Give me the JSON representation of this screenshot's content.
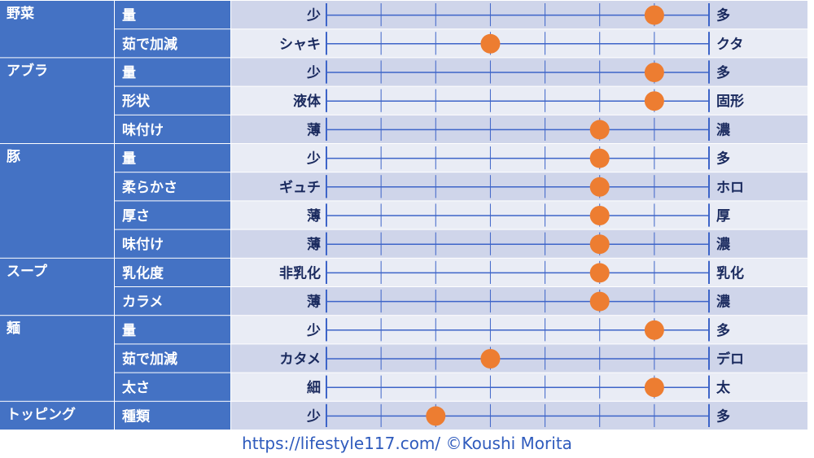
{
  "chart_data": {
    "type": "scatter",
    "scale_steps": 7,
    "colors": {
      "category_bg": "#4472c4",
      "row_light": "#e9ecf5",
      "row_dark": "#cfd5ea",
      "line": "#3d64c8",
      "marker": "#ed7d31",
      "text_dark": "#1a2a5e"
    },
    "groups": [
      {
        "category": "野菜",
        "rows": [
          {
            "item": "量",
            "low": "少",
            "high": "多",
            "value": 6
          },
          {
            "item": "茹で加減",
            "low": "シャキ",
            "high": "クタ",
            "value": 3
          }
        ]
      },
      {
        "category": "アブラ",
        "rows": [
          {
            "item": "量",
            "low": "少",
            "high": "多",
            "value": 6
          },
          {
            "item": "形状",
            "low": "液体",
            "high": "固形",
            "value": 6
          },
          {
            "item": "味付け",
            "low": "薄",
            "high": "濃",
            "value": 5
          }
        ]
      },
      {
        "category": "豚",
        "rows": [
          {
            "item": "量",
            "low": "少",
            "high": "多",
            "value": 5
          },
          {
            "item": "柔らかさ",
            "low": "ギュチ",
            "high": "ホロ",
            "value": 5
          },
          {
            "item": "厚さ",
            "low": "薄",
            "high": "厚",
            "value": 5
          },
          {
            "item": "味付け",
            "low": "薄",
            "high": "濃",
            "value": 5
          }
        ]
      },
      {
        "category": "スープ",
        "rows": [
          {
            "item": "乳化度",
            "low": "非乳化",
            "high": "乳化",
            "value": 5
          },
          {
            "item": "カラメ",
            "low": "薄",
            "high": "濃",
            "value": 5
          }
        ]
      },
      {
        "category": "麺",
        "rows": [
          {
            "item": "量",
            "low": "少",
            "high": "多",
            "value": 6
          },
          {
            "item": "茹で加減",
            "low": "カタメ",
            "high": "デロ",
            "value": 3
          },
          {
            "item": "太さ",
            "low": "細",
            "high": "太",
            "value": 6
          }
        ]
      },
      {
        "category": "トッピング",
        "rows": [
          {
            "item": "種類",
            "low": "少",
            "high": "多",
            "value": 2
          }
        ]
      }
    ]
  },
  "footer": {
    "text": "https://lifestyle117.com/  ©Koushi Morita"
  }
}
